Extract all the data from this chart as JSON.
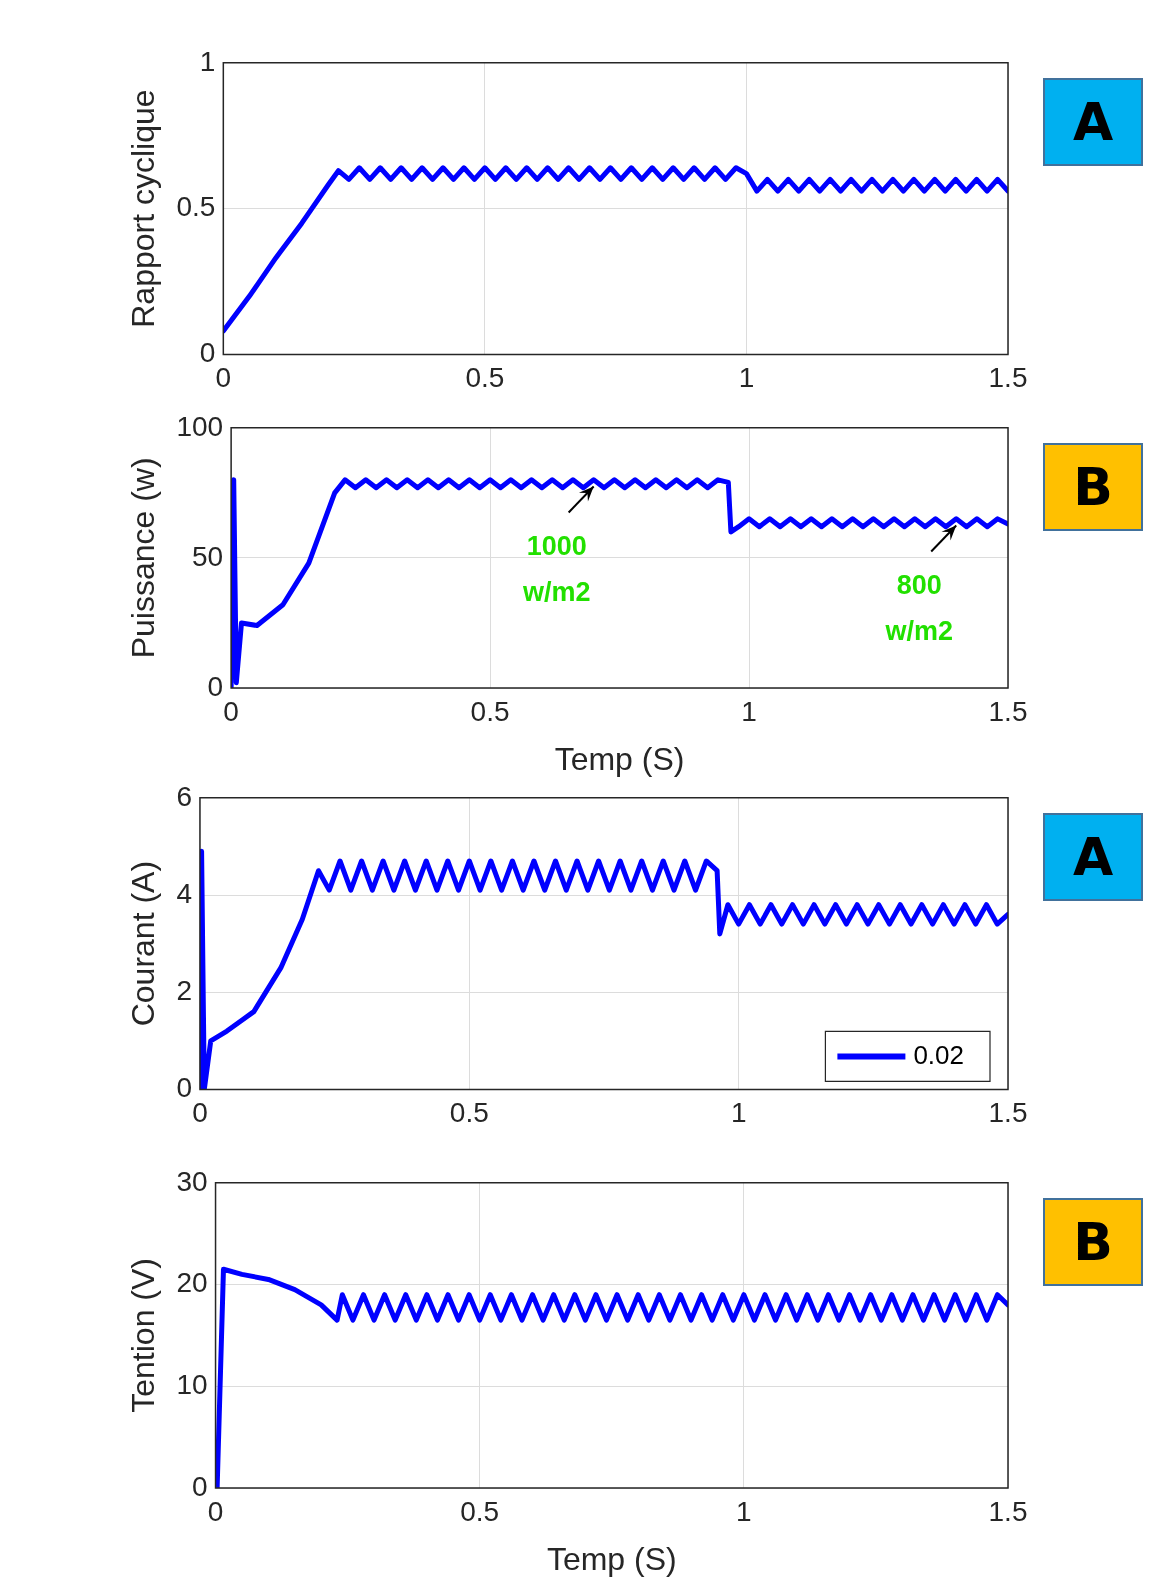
{
  "chart_data": [
    {
      "type": "line",
      "ylabel": "Rapport cyclique",
      "xlim": [
        0,
        1.5
      ],
      "xticks": [
        0,
        0.5,
        1,
        1.5
      ],
      "ylim": [
        0,
        1
      ],
      "yticks": [
        0,
        0.5,
        1
      ],
      "grid": true,
      "legend": false,
      "marker": "none",
      "line_style": "solid",
      "annotations": [
        "A"
      ],
      "series": [
        {
          "color": "#0000ff",
          "x": [
            0,
            0.05,
            0.1,
            0.15,
            0.2,
            0.22,
            0.24,
            0.26,
            0.28,
            0.3,
            0.32,
            0.34,
            0.36,
            0.38,
            0.4,
            0.42,
            0.44,
            0.46,
            0.48,
            0.5,
            0.52,
            0.54,
            0.56,
            0.58,
            0.6,
            0.62,
            0.64,
            0.66,
            0.68,
            0.7,
            0.72,
            0.74,
            0.76,
            0.78,
            0.8,
            0.82,
            0.84,
            0.86,
            0.88,
            0.9,
            0.92,
            0.94,
            0.96,
            0.98,
            1.0,
            1.02,
            1.04,
            1.06,
            1.08,
            1.1,
            1.12,
            1.14,
            1.16,
            1.18,
            1.2,
            1.22,
            1.24,
            1.26,
            1.28,
            1.3,
            1.32,
            1.34,
            1.36,
            1.38,
            1.4,
            1.42,
            1.44,
            1.46,
            1.48,
            1.5
          ],
          "values": [
            0.08,
            0.2,
            0.33,
            0.45,
            0.58,
            0.63,
            0.6,
            0.64,
            0.6,
            0.64,
            0.6,
            0.64,
            0.6,
            0.64,
            0.6,
            0.64,
            0.6,
            0.64,
            0.6,
            0.64,
            0.6,
            0.64,
            0.6,
            0.64,
            0.6,
            0.64,
            0.6,
            0.64,
            0.6,
            0.64,
            0.6,
            0.64,
            0.6,
            0.64,
            0.6,
            0.64,
            0.6,
            0.64,
            0.6,
            0.64,
            0.6,
            0.64,
            0.6,
            0.64,
            0.62,
            0.56,
            0.6,
            0.56,
            0.6,
            0.56,
            0.6,
            0.56,
            0.6,
            0.56,
            0.6,
            0.56,
            0.6,
            0.56,
            0.6,
            0.56,
            0.6,
            0.56,
            0.6,
            0.56,
            0.6,
            0.56,
            0.6,
            0.56,
            0.6,
            0.56
          ]
        }
      ]
    },
    {
      "type": "line",
      "ylabel": "Puissance (w)",
      "xlabel": "Temp (S)",
      "xlim": [
        0,
        1.5
      ],
      "xticks": [
        0,
        0.5,
        1,
        1.5
      ],
      "ylim": [
        0,
        100
      ],
      "yticks": [
        0,
        50,
        100
      ],
      "grid": true,
      "legend": false,
      "marker": "none",
      "line_style": "solid",
      "annotations": [
        "B",
        {
          "text": "1000 w/m2",
          "x": 0.7,
          "y": 79
        },
        {
          "text": "800 w/m2",
          "x": 1.4,
          "y": 64
        }
      ],
      "series": [
        {
          "color": "#0000ff",
          "x": [
            0,
            0.005,
            0.01,
            0.02,
            0.05,
            0.1,
            0.15,
            0.2,
            0.22,
            0.24,
            0.26,
            0.28,
            0.3,
            0.32,
            0.34,
            0.36,
            0.38,
            0.4,
            0.42,
            0.44,
            0.46,
            0.48,
            0.5,
            0.52,
            0.54,
            0.56,
            0.58,
            0.6,
            0.62,
            0.64,
            0.66,
            0.68,
            0.7,
            0.72,
            0.74,
            0.76,
            0.78,
            0.8,
            0.82,
            0.84,
            0.86,
            0.88,
            0.9,
            0.92,
            0.94,
            0.96,
            0.965,
            0.98,
            1.0,
            1.02,
            1.04,
            1.06,
            1.08,
            1.1,
            1.12,
            1.14,
            1.16,
            1.18,
            1.2,
            1.22,
            1.24,
            1.26,
            1.28,
            1.3,
            1.32,
            1.34,
            1.36,
            1.38,
            1.4,
            1.42,
            1.44,
            1.46,
            1.48,
            1.5
          ],
          "values": [
            0,
            80,
            2,
            25,
            24,
            32,
            48,
            75,
            80,
            77,
            80,
            77,
            80,
            77,
            80,
            77,
            80,
            77,
            80,
            77,
            80,
            77,
            80,
            77,
            80,
            77,
            80,
            77,
            80,
            77,
            80,
            77,
            80,
            77,
            80,
            77,
            80,
            77,
            80,
            77,
            80,
            77,
            80,
            77,
            80,
            79,
            60,
            62,
            65,
            62,
            65,
            62,
            65,
            62,
            65,
            62,
            65,
            62,
            65,
            62,
            65,
            62,
            65,
            62,
            65,
            62,
            65,
            62,
            65,
            62,
            65,
            62,
            65,
            63
          ]
        }
      ]
    },
    {
      "type": "line",
      "ylabel": "Courant (A)",
      "xlim": [
        0,
        1.5
      ],
      "xticks": [
        0,
        0.5,
        1,
        1.5
      ],
      "ylim": [
        0,
        6
      ],
      "yticks": [
        0,
        2,
        4,
        6
      ],
      "grid": true,
      "legend": "bottom right",
      "marker": "none",
      "line_style": "solid",
      "annotations": [
        "A"
      ],
      "series": [
        {
          "name": "0.02",
          "color": "#0000ff",
          "x": [
            0,
            0.003,
            0.008,
            0.02,
            0.05,
            0.1,
            0.15,
            0.19,
            0.22,
            0.24,
            0.26,
            0.28,
            0.3,
            0.32,
            0.34,
            0.36,
            0.38,
            0.4,
            0.42,
            0.44,
            0.46,
            0.48,
            0.5,
            0.52,
            0.54,
            0.56,
            0.58,
            0.6,
            0.62,
            0.64,
            0.66,
            0.68,
            0.7,
            0.72,
            0.74,
            0.76,
            0.78,
            0.8,
            0.82,
            0.84,
            0.86,
            0.88,
            0.9,
            0.92,
            0.94,
            0.96,
            0.965,
            0.98,
            1.0,
            1.02,
            1.04,
            1.06,
            1.08,
            1.1,
            1.12,
            1.14,
            1.16,
            1.18,
            1.2,
            1.22,
            1.24,
            1.26,
            1.28,
            1.3,
            1.32,
            1.34,
            1.36,
            1.38,
            1.4,
            1.42,
            1.44,
            1.46,
            1.48,
            1.5
          ],
          "values": [
            0,
            4.9,
            0,
            1,
            1.2,
            1.6,
            2.5,
            3.5,
            4.5,
            4.1,
            4.7,
            4.1,
            4.7,
            4.1,
            4.7,
            4.1,
            4.7,
            4.1,
            4.7,
            4.1,
            4.7,
            4.1,
            4.7,
            4.1,
            4.7,
            4.1,
            4.7,
            4.1,
            4.7,
            4.1,
            4.7,
            4.1,
            4.7,
            4.1,
            4.7,
            4.1,
            4.7,
            4.1,
            4.7,
            4.1,
            4.7,
            4.1,
            4.7,
            4.1,
            4.7,
            4.5,
            3.2,
            3.8,
            3.4,
            3.8,
            3.4,
            3.8,
            3.4,
            3.8,
            3.4,
            3.8,
            3.4,
            3.8,
            3.4,
            3.8,
            3.4,
            3.8,
            3.4,
            3.8,
            3.4,
            3.8,
            3.4,
            3.8,
            3.4,
            3.8,
            3.4,
            3.8,
            3.4,
            3.6
          ]
        }
      ]
    },
    {
      "type": "line",
      "ylabel": "Tention (V)",
      "xlabel": "Temp (S)",
      "xlim": [
        0,
        1.5
      ],
      "xticks": [
        0,
        0.5,
        1,
        1.5
      ],
      "ylim": [
        0,
        30
      ],
      "yticks": [
        0,
        10,
        20,
        30
      ],
      "grid": true,
      "legend": false,
      "marker": "none",
      "line_style": "solid",
      "annotations": [
        "B"
      ],
      "series": [
        {
          "color": "#0000ff",
          "x": [
            0.003,
            0.015,
            0.05,
            0.1,
            0.15,
            0.2,
            0.23,
            0.24,
            0.26,
            0.28,
            0.3,
            0.32,
            0.34,
            0.36,
            0.38,
            0.4,
            0.42,
            0.44,
            0.46,
            0.48,
            0.5,
            0.52,
            0.54,
            0.56,
            0.58,
            0.6,
            0.62,
            0.64,
            0.66,
            0.68,
            0.7,
            0.72,
            0.74,
            0.76,
            0.78,
            0.8,
            0.82,
            0.84,
            0.86,
            0.88,
            0.9,
            0.92,
            0.94,
            0.96,
            0.98,
            1.0,
            1.02,
            1.04,
            1.06,
            1.08,
            1.1,
            1.12,
            1.14,
            1.16,
            1.18,
            1.2,
            1.22,
            1.24,
            1.26,
            1.28,
            1.3,
            1.32,
            1.34,
            1.36,
            1.38,
            1.4,
            1.42,
            1.44,
            1.46,
            1.48,
            1.5
          ],
          "values": [
            0,
            21.5,
            21,
            20.5,
            19.5,
            18,
            16.5,
            19,
            16.5,
            19,
            16.5,
            19,
            16.5,
            19,
            16.5,
            19,
            16.5,
            19,
            16.5,
            19,
            16.5,
            19,
            16.5,
            19,
            16.5,
            19,
            16.5,
            19,
            16.5,
            19,
            16.5,
            19,
            16.5,
            19,
            16.5,
            19,
            16.5,
            19,
            16.5,
            19,
            16.5,
            19,
            16.5,
            19,
            16.5,
            19,
            16.5,
            19,
            16.5,
            19,
            16.5,
            19,
            16.5,
            19,
            16.5,
            19,
            16.5,
            19,
            16.5,
            19,
            16.5,
            19,
            16.5,
            19,
            16.5,
            19,
            16.5,
            19,
            16.5,
            19,
            18
          ]
        }
      ]
    }
  ]
}
